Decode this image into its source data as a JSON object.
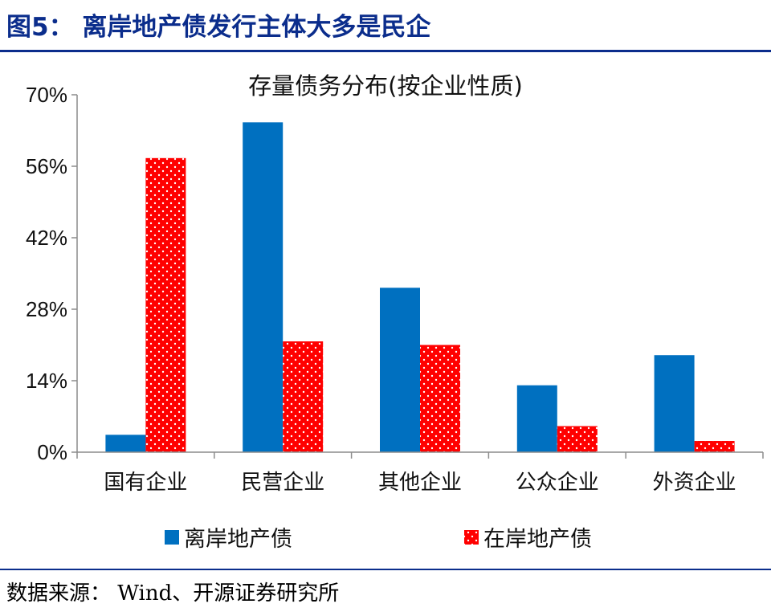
{
  "figure_title": "图5：  离岸地产债发行主体大多是民企",
  "source_note": "数据来源：  Wind、开源证券研究所",
  "colors": {
    "title": "#0b2d8c",
    "offshore": "#0070c0",
    "onshore": "#ff0000",
    "rule": "#0b2d8c"
  },
  "chart_data": {
    "type": "bar",
    "title": "存量债务分布(按企业性质)",
    "categories": [
      "国有企业",
      "民营企业",
      "其他企业",
      "公众企业",
      "外资企业"
    ],
    "series": [
      {
        "name": "离岸地产债",
        "values": [
          3.4,
          64.6,
          32.2,
          13.1,
          19.0
        ],
        "color": "#0070c0",
        "pattern": "solid"
      },
      {
        "name": "在岸地产债",
        "values": [
          57.6,
          21.7,
          21.0,
          5.1,
          2.2
        ],
        "color": "#ff0000",
        "pattern": "dotted"
      }
    ],
    "ylim": [
      0,
      70
    ],
    "yticks": [
      "0%",
      "14%",
      "28%",
      "42%",
      "56%",
      "70%"
    ],
    "ytick_values": [
      0,
      14,
      28,
      42,
      56,
      70
    ],
    "legend_position": "bottom",
    "grid": false
  }
}
